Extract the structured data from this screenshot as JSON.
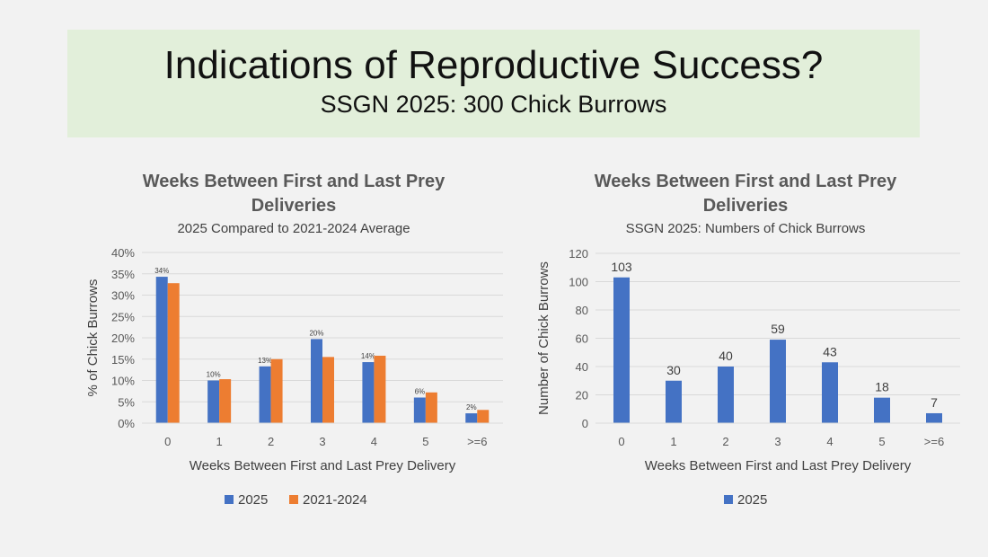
{
  "header": {
    "title": "Indications of Reproductive Success?",
    "subtitle": "SSGN 2025: 300 Chick Burrows"
  },
  "colors": {
    "series_2025": "#4472c4",
    "series_avg": "#ed7d31"
  },
  "chart_data": [
    {
      "type": "bar",
      "title_line1": "Weeks Between First and Last Prey",
      "title_line2": "Deliveries",
      "subtitle": "2025 Compared to 2021-2024 Average",
      "xlabel": "Weeks Between First and Last Prey Delivery",
      "ylabel": "% of Chick Burrows",
      "categories": [
        "0",
        "1",
        "2",
        "3",
        "4",
        "5",
        ">=6"
      ],
      "ylim": [
        0,
        40
      ],
      "yticks": [
        "0%",
        "5%",
        "10%",
        "15%",
        "20%",
        "25%",
        "30%",
        "35%",
        "40%"
      ],
      "series": [
        {
          "name": "2025",
          "values": [
            34.3,
            10.0,
            13.3,
            19.7,
            14.3,
            6.0,
            2.3
          ],
          "labels": [
            "34%",
            "10%",
            "13%",
            "20%",
            "14%",
            "6%",
            "2%"
          ]
        },
        {
          "name": "2021-2024",
          "values": [
            32.8,
            10.3,
            15.0,
            15.5,
            15.8,
            7.2,
            3.1
          ]
        }
      ],
      "legend": [
        "2025",
        "2021-2024"
      ]
    },
    {
      "type": "bar",
      "title_line1": "Weeks Between First and Last Prey",
      "title_line2": "Deliveries",
      "subtitle": "SSGN 2025: Numbers of Chick Burrows",
      "xlabel": "Weeks Between First and Last Prey Delivery",
      "ylabel": "Number of Chick Burrows",
      "categories": [
        "0",
        "1",
        "2",
        "3",
        "4",
        "5",
        ">=6"
      ],
      "ylim": [
        0,
        120
      ],
      "yticks": [
        "0",
        "20",
        "40",
        "60",
        "80",
        "100",
        "120"
      ],
      "series": [
        {
          "name": "2025",
          "values": [
            103,
            30,
            40,
            59,
            43,
            18,
            7
          ],
          "labels": [
            "103",
            "30",
            "40",
            "59",
            "43",
            "18",
            "7"
          ]
        }
      ],
      "legend": [
        "2025"
      ]
    }
  ]
}
